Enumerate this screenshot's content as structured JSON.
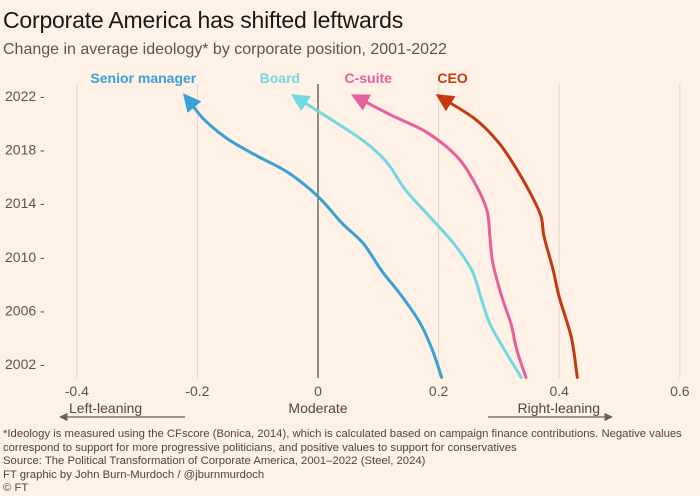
{
  "title": "Corporate America has shifted leftwards",
  "subtitle": "Change in average ideology* by corporate position, 2001-2022",
  "chart_data": {
    "type": "line",
    "x_axis": {
      "range": [
        -0.45,
        0.62
      ],
      "ticks": [
        -0.4,
        -0.2,
        0,
        0.2,
        0.4,
        0.6
      ],
      "tick_labels": [
        "-0.4",
        "-0.2",
        "0",
        "0.2",
        "0.4",
        "0.6"
      ],
      "center_label": "Moderate",
      "left_arrow_label": "Left-leaning",
      "right_arrow_label": "Right-leaning"
    },
    "y_axis": {
      "range": [
        2001,
        2022
      ],
      "ticks": [
        2002,
        2006,
        2010,
        2014,
        2018,
        2022
      ],
      "tick_labels": [
        "2002",
        "2006",
        "2010",
        "2014",
        "2018",
        "2022"
      ]
    },
    "grid": "vertical",
    "series": [
      {
        "name": "Senior manager",
        "color": "#3aa1d6",
        "points": [
          [
            0.205,
            2001
          ],
          [
            0.19,
            2003
          ],
          [
            0.17,
            2005
          ],
          [
            0.14,
            2007
          ],
          [
            0.105,
            2009
          ],
          [
            0.075,
            2011
          ],
          [
            0.04,
            2012.5
          ],
          [
            0.0,
            2014.5
          ],
          [
            -0.05,
            2016.3
          ],
          [
            -0.1,
            2017.5
          ],
          [
            -0.15,
            2018.8
          ],
          [
            -0.19,
            2020.3
          ],
          [
            -0.22,
            2022
          ]
        ]
      },
      {
        "name": "Board",
        "color": "#73d7e4",
        "points": [
          [
            0.337,
            2001
          ],
          [
            0.31,
            2003
          ],
          [
            0.285,
            2005
          ],
          [
            0.27,
            2007
          ],
          [
            0.255,
            2009
          ],
          [
            0.225,
            2011
          ],
          [
            0.185,
            2013
          ],
          [
            0.145,
            2015
          ],
          [
            0.115,
            2017
          ],
          [
            0.08,
            2018.5
          ],
          [
            0.02,
            2020.3
          ],
          [
            -0.04,
            2022
          ]
        ]
      },
      {
        "name": "C-suite",
        "color": "#e8609a",
        "points": [
          [
            0.345,
            2001
          ],
          [
            0.33,
            2003
          ],
          [
            0.32,
            2005
          ],
          [
            0.305,
            2007
          ],
          [
            0.29,
            2009.5
          ],
          [
            0.285,
            2011.5
          ],
          [
            0.28,
            2013.5
          ],
          [
            0.26,
            2015.5
          ],
          [
            0.23,
            2017.5
          ],
          [
            0.18,
            2019.3
          ],
          [
            0.12,
            2020.6
          ],
          [
            0.06,
            2022
          ]
        ]
      },
      {
        "name": "CEO",
        "color": "#c23a12",
        "points": [
          [
            0.43,
            2001
          ],
          [
            0.42,
            2004
          ],
          [
            0.4,
            2007
          ],
          [
            0.39,
            2009
          ],
          [
            0.375,
            2011.5
          ],
          [
            0.37,
            2013
          ],
          [
            0.355,
            2014.5
          ],
          [
            0.33,
            2016.5
          ],
          [
            0.3,
            2018.5
          ],
          [
            0.26,
            2020.3
          ],
          [
            0.2,
            2022
          ]
        ]
      }
    ]
  },
  "footnote": "*Ideology is measured using the CFscore (Bonica, 2014), which is calculated based on campaign finance contributions. Negative values correspond to support for more progressive politicians, and positive values to support for conservatives",
  "source": "Source: The Political Transformation of Corporate America, 2001–2022 (Steel, 2024)",
  "credit": "FT graphic by John Burn-Murdoch / @jburnmurdoch",
  "copyright": "© FT"
}
